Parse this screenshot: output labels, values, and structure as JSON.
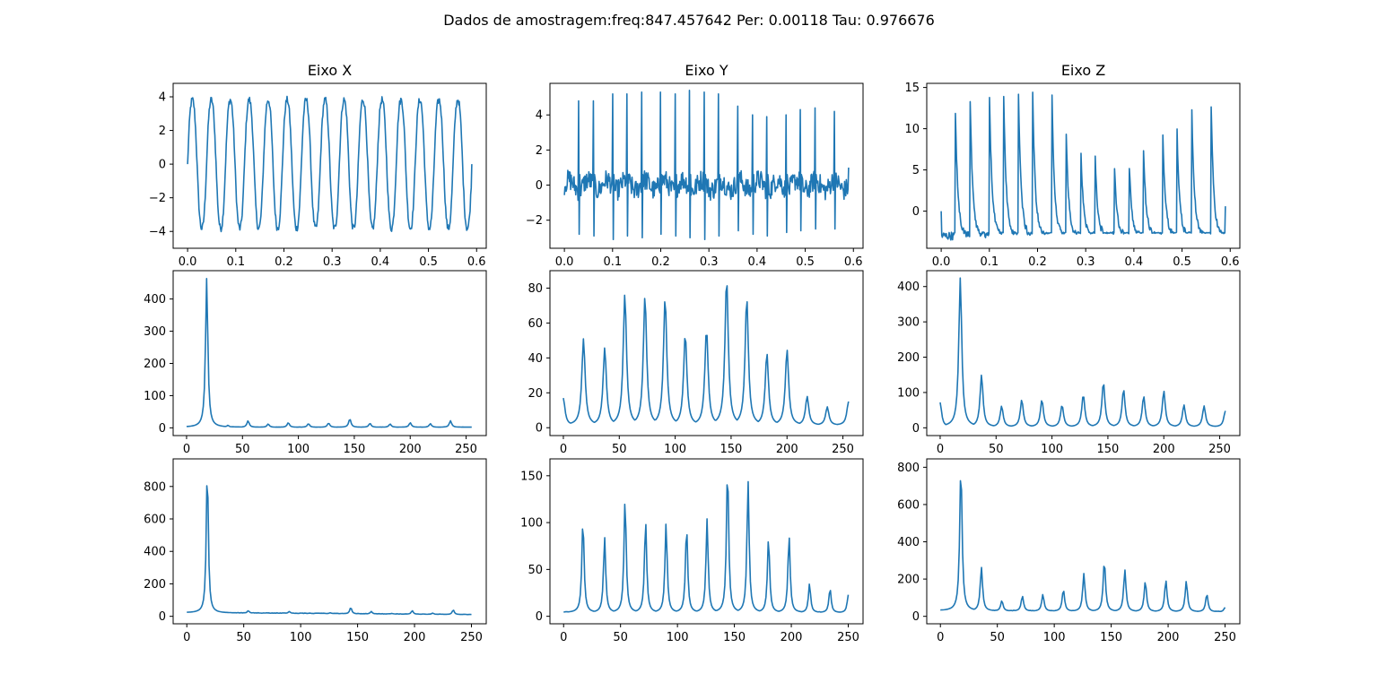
{
  "figure": {
    "suptitle": "Dados de amostragem:freq:847.457642 Per: 0.00118 Tau: 0.976676",
    "line_color": "#1f77b4"
  },
  "chart_data": [
    {
      "type": "line",
      "title": "Eixo X",
      "xlim": [
        -0.03,
        0.62
      ],
      "ylim": [
        -5.0,
        4.8
      ],
      "xticks": [
        0.0,
        0.1,
        0.2,
        0.3,
        0.4,
        0.5,
        0.6
      ],
      "xtick_labels": [
        "0.0",
        "0.1",
        "0.2",
        "0.3",
        "0.4",
        "0.5",
        "0.6"
      ],
      "yticks": [
        -4,
        -2,
        0,
        2,
        4
      ],
      "ytick_labels": [
        "−4",
        "−2",
        "0",
        "2",
        "4"
      ],
      "series": [
        {
          "x_range": [
            0.0,
            0.59
          ],
          "kind": "sine",
          "frequency_hz": 25.4,
          "amplitude": 4.0,
          "ripple": 0.35
        }
      ]
    },
    {
      "type": "line",
      "title": "Eixo Y",
      "xlim": [
        -0.03,
        0.62
      ],
      "ylim": [
        -3.6,
        5.8
      ],
      "xticks": [
        0.0,
        0.1,
        0.2,
        0.3,
        0.4,
        0.5,
        0.6
      ],
      "xtick_labels": [
        "0.0",
        "0.1",
        "0.2",
        "0.3",
        "0.4",
        "0.5",
        "0.6"
      ],
      "yticks": [
        -2,
        0,
        2,
        4
      ],
      "ytick_labels": [
        "−2",
        "0",
        "2",
        "4"
      ],
      "series": [
        {
          "x_range": [
            0.0,
            0.59
          ],
          "kind": "spikes",
          "baseline": 0.0,
          "noise": 0.6,
          "spike_times": [
            0.03,
            0.06,
            0.1,
            0.13,
            0.16,
            0.2,
            0.23,
            0.26,
            0.29,
            0.32,
            0.36,
            0.39,
            0.42,
            0.46,
            0.49,
            0.52,
            0.56
          ],
          "spike_peaks": [
            4.8,
            4.8,
            5.2,
            5.2,
            5.3,
            5.3,
            5.2,
            5.4,
            5.3,
            5.2,
            4.5,
            4.0,
            3.9,
            4.0,
            4.3,
            4.4,
            4.2
          ],
          "spike_troughs": [
            -2.8,
            -2.9,
            -3.1,
            -2.9,
            -3.0,
            -2.8,
            -2.9,
            -3.0,
            -3.1,
            -2.9,
            -2.6,
            -2.8,
            -2.9,
            -2.7,
            -2.6,
            -2.5,
            -2.5
          ]
        }
      ]
    },
    {
      "type": "line",
      "title": "Eixo Z",
      "xlim": [
        -0.03,
        0.62
      ],
      "ylim": [
        -4.5,
        15.5
      ],
      "xticks": [
        0.0,
        0.1,
        0.2,
        0.3,
        0.4,
        0.5,
        0.6
      ],
      "xtick_labels": [
        "0.0",
        "0.1",
        "0.2",
        "0.3",
        "0.4",
        "0.5",
        "0.6"
      ],
      "yticks": [
        0,
        5,
        10,
        15
      ],
      "ytick_labels": [
        "0",
        "5",
        "10",
        "15"
      ],
      "series": [
        {
          "x_range": [
            0.0,
            0.59
          ],
          "kind": "decay_spikes",
          "baseline": -3.0,
          "spike_times": [
            0.03,
            0.06,
            0.1,
            0.13,
            0.16,
            0.19,
            0.23,
            0.26,
            0.29,
            0.32,
            0.36,
            0.39,
            0.42,
            0.46,
            0.49,
            0.52,
            0.56
          ],
          "spike_peaks": [
            11.8,
            13.5,
            14.0,
            14.1,
            14.5,
            14.4,
            13.8,
            9.0,
            7.0,
            6.3,
            5.2,
            5.4,
            7.5,
            9.5,
            9.8,
            12.0,
            12.6
          ]
        }
      ]
    },
    {
      "type": "line",
      "title": "",
      "xlim": [
        -12,
        268
      ],
      "ylim": [
        -24,
        488
      ],
      "xticks": [
        0,
        50,
        100,
        150,
        200,
        250
      ],
      "xtick_labels": [
        "0",
        "50",
        "100",
        "150",
        "200",
        "250"
      ],
      "yticks": [
        0,
        100,
        200,
        300,
        400
      ],
      "ytick_labels": [
        "0",
        "100",
        "200",
        "300",
        "400"
      ],
      "series": [
        {
          "x_range": [
            0,
            255
          ],
          "kind": "peaks",
          "floor": 2,
          "peak_width": 1.4,
          "peaks": [
            [
              18,
              465
            ],
            [
              37,
              8
            ],
            [
              55,
              22
            ],
            [
              73,
              12
            ],
            [
              91,
              16
            ],
            [
              109,
              13
            ],
            [
              127,
              15
            ],
            [
              146,
              28
            ],
            [
              164,
              14
            ],
            [
              182,
              12
            ],
            [
              200,
              16
            ],
            [
              218,
              13
            ],
            [
              236,
              22
            ]
          ]
        }
      ]
    },
    {
      "type": "line",
      "title": "",
      "xlim": [
        -12,
        268
      ],
      "ylim": [
        -4.5,
        90
      ],
      "xticks": [
        0,
        50,
        100,
        150,
        200,
        250
      ],
      "xtick_labels": [
        "0",
        "50",
        "100",
        "150",
        "200",
        "250"
      ],
      "yticks": [
        0,
        20,
        40,
        60,
        80
      ],
      "ytick_labels": [
        "0",
        "20",
        "40",
        "60",
        "80"
      ],
      "series": [
        {
          "x_range": [
            0,
            255
          ],
          "kind": "peaks",
          "floor": 1.5,
          "peak_width": 2.0,
          "peaks": [
            [
              0,
              17
            ],
            [
              18,
              51
            ],
            [
              37,
              46
            ],
            [
              55,
              77
            ],
            [
              73,
              76
            ],
            [
              91,
              75
            ],
            [
              109,
              54
            ],
            [
              128,
              57
            ],
            [
              146,
              86
            ],
            [
              164,
              75
            ],
            [
              182,
              43
            ],
            [
              200,
              45
            ],
            [
              218,
              18
            ],
            [
              236,
              12
            ],
            [
              255,
              15
            ]
          ]
        }
      ]
    },
    {
      "type": "line",
      "title": "",
      "xlim": [
        -12,
        268
      ],
      "ylim": [
        -22,
        445
      ],
      "xticks": [
        0,
        50,
        100,
        150,
        200,
        250
      ],
      "xtick_labels": [
        "0",
        "50",
        "100",
        "150",
        "200",
        "250"
      ],
      "yticks": [
        0,
        100,
        200,
        300,
        400
      ],
      "ytick_labels": [
        "0",
        "100",
        "200",
        "300",
        "400"
      ],
      "series": [
        {
          "x_range": [
            0,
            255
          ],
          "kind": "peaks",
          "floor": 3,
          "peak_width": 1.8,
          "peaks": [
            [
              0,
              72
            ],
            [
              18,
              425
            ],
            [
              37,
              150
            ],
            [
              55,
              62
            ],
            [
              73,
              80
            ],
            [
              91,
              80
            ],
            [
              109,
              65
            ],
            [
              128,
              95
            ],
            [
              146,
              130
            ],
            [
              164,
              110
            ],
            [
              182,
              90
            ],
            [
              200,
              105
            ],
            [
              218,
              65
            ],
            [
              236,
              62
            ],
            [
              255,
              48
            ]
          ]
        }
      ]
    },
    {
      "type": "line",
      "title": "",
      "xlim": [
        -12,
        263
      ],
      "ylim": [
        -46,
        970
      ],
      "xticks": [
        0,
        50,
        100,
        150,
        200,
        250
      ],
      "xtick_labels": [
        "0",
        "50",
        "100",
        "150",
        "200",
        "250"
      ],
      "yticks": [
        0,
        200,
        400,
        600,
        800
      ],
      "ytick_labels": [
        "0",
        "200",
        "400",
        "600",
        "800"
      ],
      "series": [
        {
          "x_range": [
            0,
            250
          ],
          "kind": "peaks_with_floor",
          "floor_start": 22,
          "floor_end": 3,
          "peak_width": 1.2,
          "peaks": [
            [
              18,
              930
            ],
            [
              36,
              15
            ],
            [
              54,
              35
            ],
            [
              72,
              15
            ],
            [
              90,
              30
            ],
            [
              108,
              20
            ],
            [
              126,
              22
            ],
            [
              144,
              55
            ],
            [
              162,
              30
            ],
            [
              180,
              18
            ],
            [
              198,
              35
            ],
            [
              216,
              20
            ],
            [
              234,
              40
            ]
          ]
        }
      ]
    },
    {
      "type": "line",
      "title": "",
      "xlim": [
        -12,
        263
      ],
      "ylim": [
        -8,
        168
      ],
      "xticks": [
        0,
        50,
        100,
        150,
        200,
        250
      ],
      "xtick_labels": [
        "0",
        "50",
        "100",
        "150",
        "200",
        "250"
      ],
      "yticks": [
        0,
        50,
        100,
        150
      ],
      "ytick_labels": [
        "0",
        "50",
        "100",
        "150"
      ],
      "series": [
        {
          "x_range": [
            0,
            250
          ],
          "kind": "peaks_with_floor",
          "floor_start": 4,
          "floor_end": 4,
          "peak_width": 1.3,
          "peaks": [
            [
              17,
              104
            ],
            [
              36,
              85
            ],
            [
              54,
              127
            ],
            [
              72,
              103
            ],
            [
              90,
              100
            ],
            [
              108,
              97
            ],
            [
              126,
              104
            ],
            [
              144,
              161
            ],
            [
              162,
              145
            ],
            [
              180,
              85
            ],
            [
              198,
              87
            ],
            [
              216,
              35
            ],
            [
              234,
              30
            ],
            [
              250,
              23
            ]
          ]
        }
      ]
    },
    {
      "type": "line",
      "title": "",
      "xlim": [
        -12,
        263
      ],
      "ylim": [
        -40,
        845
      ],
      "xticks": [
        0,
        50,
        100,
        150,
        200,
        250
      ],
      "xtick_labels": [
        "0",
        "50",
        "100",
        "150",
        "200",
        "250"
      ],
      "yticks": [
        0,
        200,
        400,
        600,
        800
      ],
      "ytick_labels": [
        "0",
        "200",
        "400",
        "600",
        "800"
      ],
      "series": [
        {
          "x_range": [
            0,
            250
          ],
          "kind": "peaks_with_floor",
          "floor_start": 30,
          "floor_end": 20,
          "peak_width": 1.4,
          "peaks": [
            [
              18,
              810
            ],
            [
              36,
              265
            ],
            [
              54,
              85
            ],
            [
              72,
              110
            ],
            [
              90,
              118
            ],
            [
              108,
              145
            ],
            [
              126,
              230
            ],
            [
              144,
              300
            ],
            [
              162,
              250
            ],
            [
              180,
              190
            ],
            [
              198,
              195
            ],
            [
              216,
              190
            ],
            [
              234,
              120
            ],
            [
              250,
              48
            ]
          ]
        }
      ]
    }
  ]
}
